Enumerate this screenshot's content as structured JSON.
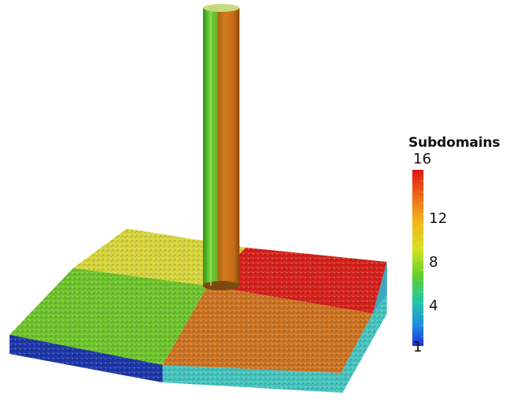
{
  "legend": {
    "title": "Subdomains",
    "labels": {
      "max": "16",
      "l12": "12",
      "l8": "8",
      "l4": "4",
      "min": "1"
    }
  },
  "colors": {
    "subdomain_low": "#1f3fd0",
    "subdomain_teal": "#3fc0bf",
    "subdomain_green": "#6fc42a",
    "subdomain_yellow": "#d7d43a",
    "subdomain_orange": "#cf7420",
    "subdomain_red": "#d4231c"
  },
  "scene": {
    "objects": [
      "vertical-cylinder",
      "particle-slab",
      "slab-quadrants"
    ]
  }
}
